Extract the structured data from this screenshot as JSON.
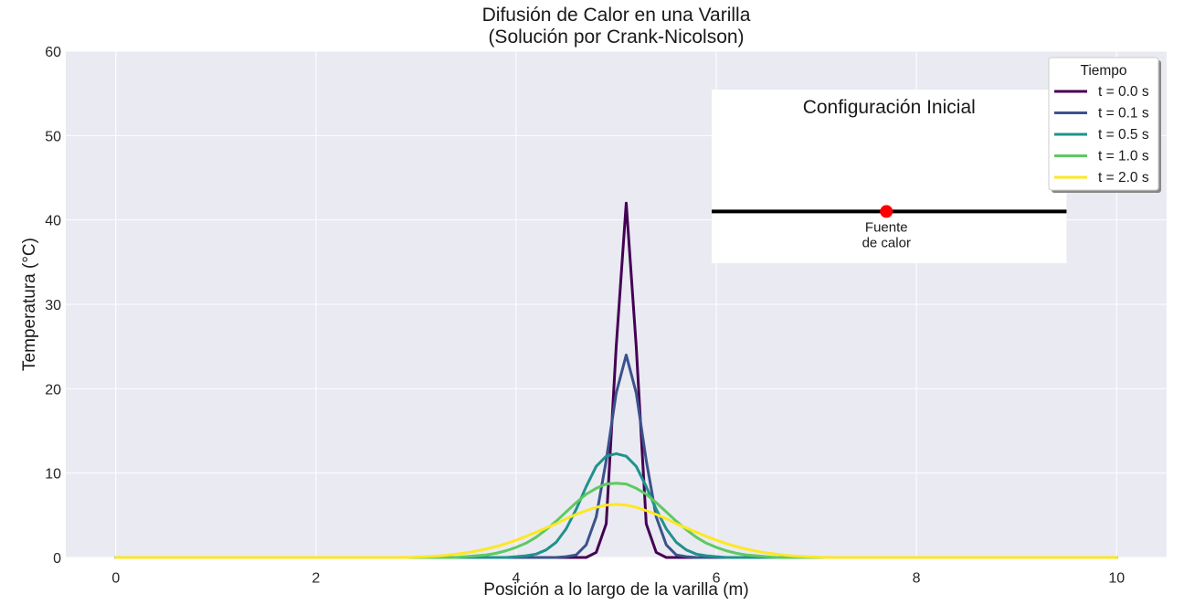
{
  "chart_data": {
    "type": "line",
    "title": "Difusión de Calor en una Varilla\n(Solución por Crank-Nicolson)",
    "title_lines": [
      "Difusión de Calor en una Varilla",
      "(Solución por Crank-Nicolson)"
    ],
    "xlabel": "Posición a lo largo de la varilla (m)",
    "ylabel": "Temperatura (°C)",
    "xlim": [
      -0.5,
      10.5
    ],
    "ylim": [
      0,
      60
    ],
    "xticks": [
      0,
      2,
      4,
      6,
      8,
      10
    ],
    "yticks": [
      0,
      10,
      20,
      30,
      40,
      50,
      60
    ],
    "grid": true,
    "legend": {
      "title": "Tiempo",
      "placement": "top-right"
    },
    "x_start": 0,
    "x_step": 0.1,
    "series": [
      {
        "name": "t = 0.0 s",
        "color": "#440154",
        "peak": 42.0,
        "values": [
          0,
          0,
          0,
          0,
          0,
          0,
          0,
          0,
          0,
          0,
          0,
          0,
          0,
          0,
          0,
          0,
          0,
          0,
          0,
          0,
          0,
          0,
          0,
          0,
          0,
          0,
          0,
          0,
          0,
          0,
          0,
          0,
          0,
          0,
          0,
          0,
          0,
          0,
          0,
          0,
          0,
          0,
          0,
          0,
          0,
          0,
          0,
          0,
          0.6,
          4.0,
          25.0,
          42.0,
          25.0,
          4.0,
          0.6,
          0,
          0,
          0,
          0,
          0,
          0,
          0,
          0,
          0,
          0,
          0,
          0,
          0,
          0,
          0,
          0,
          0,
          0,
          0,
          0,
          0,
          0,
          0,
          0,
          0,
          0,
          0,
          0,
          0,
          0,
          0,
          0,
          0,
          0,
          0,
          0,
          0,
          0,
          0,
          0,
          0,
          0,
          0,
          0,
          0,
          0
        ]
      },
      {
        "name": "t = 0.1 s",
        "color": "#3b528b",
        "peak": 24.0,
        "values": [
          0,
          0,
          0,
          0,
          0,
          0,
          0,
          0,
          0,
          0,
          0,
          0,
          0,
          0,
          0,
          0,
          0,
          0,
          0,
          0,
          0,
          0,
          0,
          0,
          0,
          0,
          0,
          0,
          0,
          0,
          0,
          0,
          0,
          0,
          0,
          0,
          0,
          0,
          0,
          0,
          0,
          0,
          0,
          0,
          0,
          0.1,
          0.3,
          1.5,
          4.8,
          11.5,
          19.5,
          24.0,
          19.5,
          11.5,
          4.8,
          1.5,
          0.3,
          0.1,
          0,
          0,
          0,
          0,
          0,
          0,
          0,
          0,
          0,
          0,
          0,
          0,
          0,
          0,
          0,
          0,
          0,
          0,
          0,
          0,
          0,
          0,
          0,
          0,
          0,
          0,
          0,
          0,
          0,
          0,
          0,
          0,
          0,
          0,
          0,
          0,
          0,
          0,
          0,
          0,
          0,
          0,
          0
        ]
      },
      {
        "name": "t = 0.5 s",
        "color": "#21918c",
        "peak": 12.3,
        "values": [
          0,
          0,
          0,
          0,
          0,
          0,
          0,
          0,
          0,
          0,
          0,
          0,
          0,
          0,
          0,
          0,
          0,
          0,
          0,
          0,
          0,
          0,
          0,
          0,
          0,
          0,
          0,
          0,
          0,
          0,
          0,
          0,
          0,
          0,
          0,
          0,
          0,
          0,
          0,
          0,
          0.1,
          0.2,
          0.4,
          0.9,
          1.8,
          3.4,
          5.7,
          8.4,
          10.8,
          12.0,
          12.3,
          12.0,
          10.8,
          8.4,
          5.7,
          3.4,
          1.8,
          0.9,
          0.4,
          0.2,
          0.1,
          0,
          0,
          0,
          0,
          0,
          0,
          0,
          0,
          0,
          0,
          0,
          0,
          0,
          0,
          0,
          0,
          0,
          0,
          0,
          0,
          0,
          0,
          0,
          0,
          0,
          0,
          0,
          0,
          0,
          0,
          0,
          0,
          0,
          0,
          0,
          0,
          0,
          0,
          0,
          0
        ]
      },
      {
        "name": "t = 1.0 s",
        "color": "#5ec962",
        "peak": 8.8,
        "values": [
          0,
          0,
          0,
          0,
          0,
          0,
          0,
          0,
          0,
          0,
          0,
          0,
          0,
          0,
          0,
          0,
          0,
          0,
          0,
          0,
          0,
          0,
          0,
          0,
          0,
          0,
          0,
          0,
          0,
          0,
          0,
          0,
          0,
          0,
          0,
          0.1,
          0.2,
          0.3,
          0.5,
          0.8,
          1.2,
          1.7,
          2.4,
          3.3,
          4.3,
          5.4,
          6.5,
          7.5,
          8.2,
          8.7,
          8.8,
          8.7,
          8.2,
          7.5,
          6.5,
          5.4,
          4.3,
          3.3,
          2.4,
          1.7,
          1.2,
          0.8,
          0.5,
          0.3,
          0.2,
          0.1,
          0,
          0,
          0,
          0,
          0,
          0,
          0,
          0,
          0,
          0,
          0,
          0,
          0,
          0,
          0,
          0,
          0,
          0,
          0,
          0,
          0,
          0,
          0,
          0,
          0,
          0,
          0,
          0,
          0,
          0,
          0,
          0,
          0,
          0,
          0
        ]
      },
      {
        "name": "t = 2.0 s",
        "color": "#fde725",
        "peak": 6.3,
        "values": [
          0,
          0,
          0,
          0,
          0,
          0,
          0,
          0,
          0,
          0,
          0,
          0,
          0,
          0,
          0,
          0,
          0,
          0,
          0,
          0,
          0,
          0,
          0,
          0,
          0,
          0,
          0,
          0,
          0,
          0,
          0.05,
          0.1,
          0.15,
          0.25,
          0.4,
          0.55,
          0.75,
          1.0,
          1.3,
          1.65,
          2.05,
          2.5,
          3.0,
          3.5,
          4.0,
          4.6,
          5.1,
          5.55,
          5.95,
          6.2,
          6.3,
          6.2,
          5.95,
          5.55,
          5.1,
          4.6,
          4.0,
          3.5,
          3.0,
          2.5,
          2.05,
          1.65,
          1.3,
          1.0,
          0.75,
          0.55,
          0.4,
          0.25,
          0.15,
          0.1,
          0.05,
          0,
          0,
          0,
          0,
          0,
          0,
          0,
          0,
          0,
          0,
          0,
          0,
          0,
          0,
          0,
          0,
          0,
          0,
          0,
          0,
          0,
          0,
          0,
          0,
          0,
          0,
          0,
          0,
          0,
          0
        ]
      }
    ],
    "inset": {
      "title": "Configuración Inicial",
      "rod_x": [
        6,
        9.5
      ],
      "rod_y": 41,
      "rod_color": "#000000",
      "source_x": 7.7,
      "source_y": 41,
      "source_color": "#ff0000",
      "source_label_lines": [
        "Fuente",
        "de calor"
      ]
    }
  }
}
